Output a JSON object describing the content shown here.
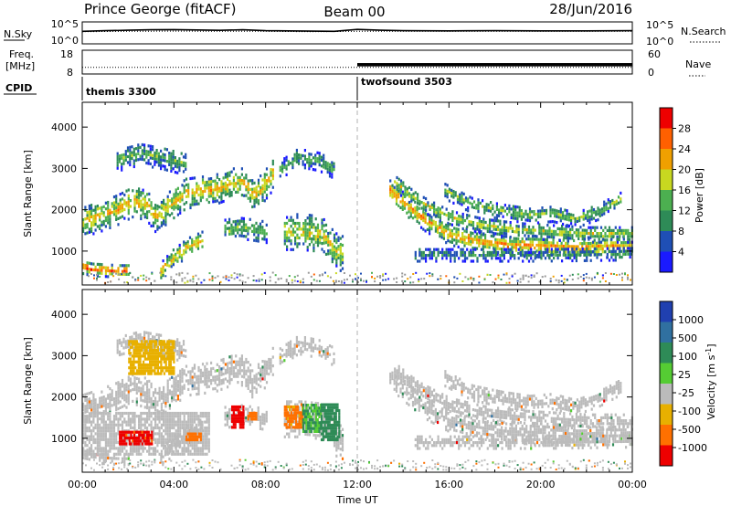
{
  "header": {
    "station": "Prince George (fitACF)",
    "beam": "Beam 00",
    "date": "28/Jun/2016"
  },
  "colors": {
    "power_scale": [
      "#1a1aff",
      "#1f4fb5",
      "#2e8b57",
      "#4caf50",
      "#c8d820",
      "#f0a000",
      "#ff6000",
      "#ee0000"
    ],
    "velocity_scale": [
      "#2040b0",
      "#3070a0",
      "#2e8b57",
      "#55cc33",
      "#bbbbbb",
      "#e8b000",
      "#ff7000",
      "#ee0000"
    ],
    "background_scatter": "#999999",
    "cpid_divider": "#aaaaaa"
  },
  "chart_data": [
    {
      "type": "line",
      "name": "noise-panel",
      "left_label": "N.Sky",
      "right_label": "N.Search",
      "left_ticks": [
        "10^5",
        "10^0"
      ],
      "right_ticks": [
        "10^5",
        "10^0"
      ],
      "yscale": "log",
      "ylim": [
        1,
        100000
      ],
      "xlim": [
        0,
        24
      ],
      "series": [
        {
          "style": "solid",
          "x": [
            0,
            1,
            2,
            3,
            4,
            5,
            6,
            7,
            8,
            9,
            10,
            11,
            12,
            13,
            14,
            16,
            18,
            20,
            22,
            24
          ],
          "y": [
            700,
            1000,
            1300,
            1600,
            1800,
            1500,
            1200,
            1600,
            1000,
            900,
            800,
            700,
            2000,
            1300,
            1000,
            900,
            1000,
            900,
            900,
            1000
          ]
        },
        {
          "style": "dotted",
          "x": [
            0,
            2,
            4,
            6,
            8,
            10,
            12,
            14,
            16,
            18,
            20,
            22,
            24
          ],
          "y": [
            600,
            700,
            800,
            700,
            700,
            600,
            700,
            700,
            700,
            700,
            700,
            700,
            700
          ]
        }
      ]
    },
    {
      "type": "line",
      "name": "freq-nave-panel",
      "left_label": "Freq.",
      "left_unit": "[MHz]",
      "right_label": "Nave",
      "left_ticks": [
        "18",
        "8"
      ],
      "right_ticks": [
        "60",
        "0"
      ],
      "ylim": [
        8,
        18
      ],
      "xlim": [
        0,
        24
      ],
      "series": [
        {
          "style": "dotted",
          "x": [
            0,
            24
          ],
          "y": [
            10.8,
            10.8
          ]
        },
        {
          "style": "band",
          "x": [
            12,
            24
          ],
          "y": [
            11.2,
            12.6
          ]
        }
      ]
    },
    {
      "type": "table",
      "name": "cpid-row",
      "label": "CPID",
      "segments": [
        {
          "name": "themis 3300",
          "start": 0,
          "end": 12
        },
        {
          "name": "twofsound 3503",
          "start": 12,
          "end": 24
        }
      ]
    },
    {
      "type": "heatmap",
      "name": "power-panel",
      "ylabel": "Slant Range [km]",
      "xlabel": "",
      "xlim": [
        0,
        24
      ],
      "ylim": [
        180,
        4600
      ],
      "yticks": [
        1000,
        2000,
        3000,
        4000
      ],
      "colorbar": {
        "label": "Power [dB]",
        "ticks": [
          "28",
          "24",
          "20",
          "16",
          "12",
          "8",
          "4"
        ],
        "range": [
          0,
          30
        ]
      },
      "echo_bands": [
        {
          "points": [
            [
              0.0,
              650
            ],
            [
              0.4,
              600
            ],
            [
              1.0,
              580
            ],
            [
              1.6,
              560
            ],
            [
              2.0,
              560
            ]
          ],
          "width": 160,
          "power": 26
        },
        {
          "points": [
            [
              0.0,
              1750
            ],
            [
              0.8,
              1900
            ],
            [
              1.5,
              2050
            ],
            [
              2.2,
              2250
            ],
            [
              2.8,
              2150
            ],
            [
              3.2,
              1850
            ],
            [
              3.8,
              2150
            ],
            [
              4.5,
              2450
            ],
            [
              5.2,
              2500
            ],
            [
              5.8,
              2550
            ],
            [
              6.5,
              2700
            ],
            [
              7.0,
              2700
            ],
            [
              7.4,
              2400
            ],
            [
              7.8,
              2550
            ],
            [
              8.3,
              2900
            ]
          ],
          "width": 380,
          "power": 20
        },
        {
          "points": [
            [
              1.5,
              3250
            ],
            [
              2.5,
              3400
            ],
            [
              3.5,
              3300
            ],
            [
              4.5,
              3150
            ]
          ],
          "width": 280,
          "power": 12
        },
        {
          "points": [
            [
              3.4,
              550
            ],
            [
              3.9,
              850
            ],
            [
              4.6,
              1150
            ],
            [
              5.2,
              1300
            ]
          ],
          "width": 230,
          "power": 20
        },
        {
          "points": [
            [
              6.2,
              1550
            ],
            [
              6.8,
              1600
            ],
            [
              7.5,
              1550
            ],
            [
              8.0,
              1500
            ]
          ],
          "width": 260,
          "power": 14
        },
        {
          "points": [
            [
              8.8,
              1500
            ],
            [
              9.6,
              1500
            ],
            [
              10.4,
              1450
            ],
            [
              11.0,
              1050
            ],
            [
              11.4,
              950
            ]
          ],
          "width": 430,
          "power": 18
        },
        {
          "points": [
            [
              8.6,
              3000
            ],
            [
              9.4,
              3300
            ],
            [
              10.3,
              3200
            ],
            [
              11.0,
              3000
            ]
          ],
          "width": 220,
          "power": 12
        },
        {
          "points": [
            [
              13.4,
              2500
            ],
            [
              14.0,
              2200
            ],
            [
              15.0,
              1750
            ],
            [
              16.0,
              1450
            ],
            [
              17.0,
              1300
            ],
            [
              18.5,
              1180
            ],
            [
              20.0,
              1150
            ],
            [
              21.5,
              1120
            ],
            [
              23.0,
              1140
            ],
            [
              24.0,
              1150
            ]
          ],
          "width": 260,
          "power": 22
        },
        {
          "points": [
            [
              13.6,
              2700
            ],
            [
              14.6,
              2250
            ],
            [
              16.0,
              1850
            ],
            [
              17.5,
              1650
            ],
            [
              19.0,
              1550
            ],
            [
              20.5,
              1500
            ],
            [
              22.0,
              1450
            ],
            [
              24.0,
              1450
            ]
          ],
          "width": 200,
          "power": 16
        },
        {
          "points": [
            [
              15.8,
              2500
            ],
            [
              17.0,
              2150
            ],
            [
              18.3,
              2000
            ],
            [
              19.5,
              1900
            ],
            [
              20.5,
              1950
            ],
            [
              21.5,
              1800
            ],
            [
              22.5,
              2000
            ],
            [
              23.5,
              2300
            ]
          ],
          "width": 200,
          "power": 14
        },
        {
          "points": [
            [
              14.5,
              950
            ],
            [
              17.0,
              950
            ],
            [
              20.0,
              950
            ],
            [
              24.0,
              980
            ]
          ],
          "width": 160,
          "power": 10
        }
      ],
      "ground_scatter_base_km": [
        250,
        500
      ]
    },
    {
      "type": "heatmap",
      "name": "velocity-panel",
      "ylabel": "Slant Range [km]",
      "xlabel": "Time UT",
      "xlim": [
        0,
        24
      ],
      "ylim": [
        180,
        4600
      ],
      "yticks": [
        1000,
        2000,
        3000,
        4000
      ],
      "xticks": [
        "00:00",
        "04:00",
        "08:00",
        "12:00",
        "16:00",
        "20:00",
        "00:00"
      ],
      "colorbar": {
        "label": "Velocity [m s-1]",
        "ticks": [
          "1000",
          "500",
          "100",
          "25",
          "-25",
          "-100",
          "-500",
          "-1000"
        ]
      },
      "velocity_patches": [
        {
          "t": [
            6.5,
            7.0
          ],
          "r": [
            1300,
            1800
          ],
          "v": -900
        },
        {
          "t": [
            7.2,
            7.6
          ],
          "r": [
            1500,
            1700
          ],
          "v": -400
        },
        {
          "t": [
            8.8,
            9.6
          ],
          "r": [
            1300,
            1800
          ],
          "v": -120
        },
        {
          "t": [
            9.6,
            10.4
          ],
          "r": [
            1200,
            1900
          ],
          "v": 100
        },
        {
          "t": [
            10.4,
            11.2
          ],
          "r": [
            1000,
            1900
          ],
          "v": 300
        },
        {
          "t": [
            1.6,
            3.0
          ],
          "r": [
            900,
            1200
          ],
          "v": -600
        },
        {
          "t": [
            4.5,
            5.2
          ],
          "r": [
            1000,
            1200
          ],
          "v": -250
        },
        {
          "t": [
            2.0,
            4.0
          ],
          "r": [
            2600,
            3400
          ],
          "v": -60
        }
      ]
    }
  ]
}
